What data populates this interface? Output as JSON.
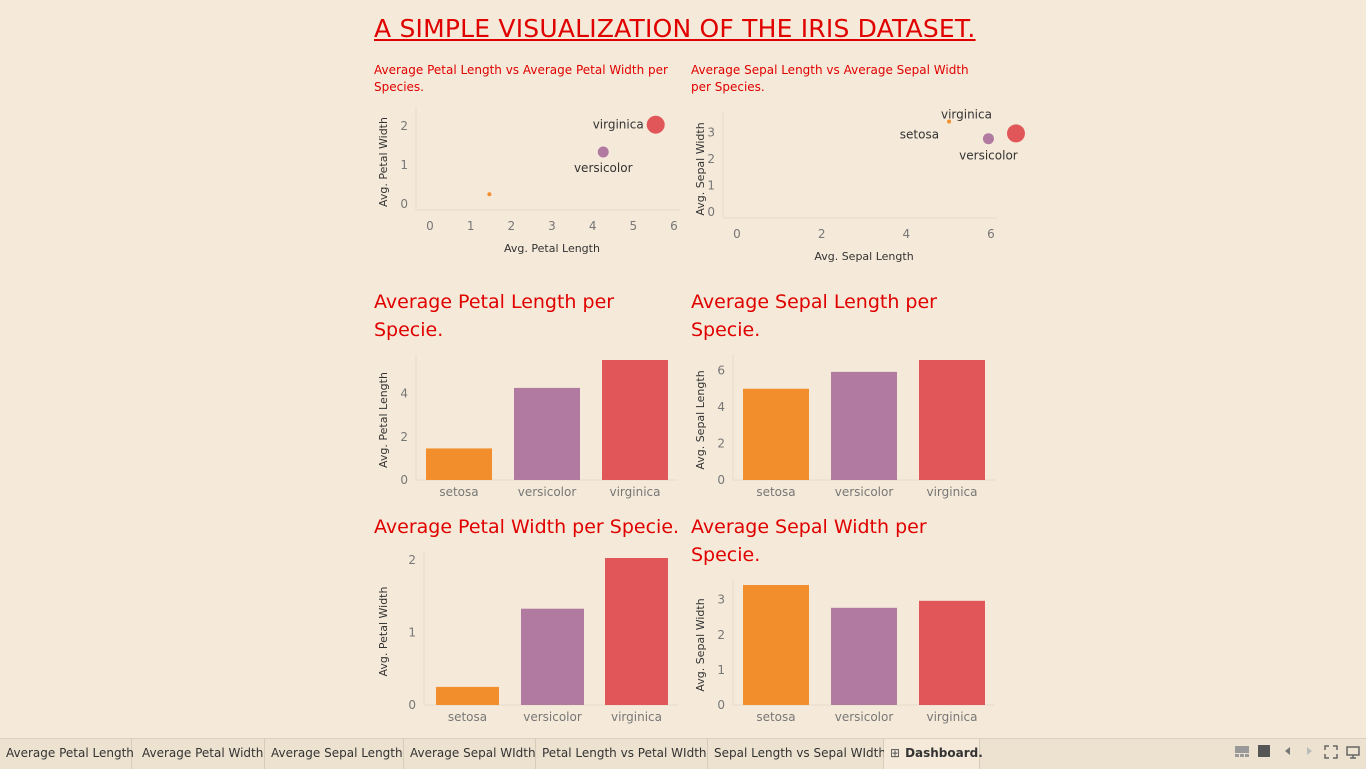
{
  "page": {
    "title": "A SIMPLE  VISUALIZATION OF THE IRIS DATASET."
  },
  "colors": {
    "setosa": "#f28e2b",
    "versicolor": "#b07aa1",
    "virginica": "#e15759",
    "title": "#e00000"
  },
  "chart_data": [
    {
      "id": "petal-scatter",
      "type": "scatter",
      "title": "Average Petal Length vs Average Petal Width per Species.",
      "xlabel": "Avg. Petal Length",
      "ylabel": "Avg. Petal Width",
      "xlim": [
        0,
        6
      ],
      "ylim": [
        0,
        2
      ],
      "xticks": [
        0,
        1,
        2,
        3,
        4,
        5,
        6
      ],
      "yticks": [
        0,
        1,
        2
      ],
      "points": [
        {
          "label": "",
          "species": "setosa",
          "x": 1.46,
          "y": 0.25,
          "size": 2
        },
        {
          "label": "versicolor",
          "species": "versicolor",
          "x": 4.26,
          "y": 1.33,
          "size": 5.5
        },
        {
          "label": "virginica",
          "species": "virginica",
          "x": 5.55,
          "y": 2.03,
          "size": 9
        }
      ]
    },
    {
      "id": "sepal-scatter",
      "type": "scatter",
      "title": "Average Sepal Length vs Average Sepal Width per Species.",
      "xlabel": "Avg. Sepal Length",
      "ylabel": "Avg. Sepal Width",
      "xlim": [
        0,
        6
      ],
      "ylim": [
        0,
        3
      ],
      "xticks": [
        0,
        2,
        4,
        6
      ],
      "yticks": [
        0,
        1,
        2,
        3
      ],
      "points": [
        {
          "label": "setosa",
          "species": "setosa",
          "x": 5.01,
          "y": 3.42,
          "size": 2
        },
        {
          "label": "versicolor",
          "species": "versicolor",
          "x": 5.94,
          "y": 2.77,
          "size": 5.5
        },
        {
          "label": "virginica",
          "species": "virginica",
          "x": 6.59,
          "y": 2.97,
          "size": 9
        }
      ]
    },
    {
      "id": "petal-length-bar",
      "type": "bar",
      "title": "Average Petal Length per Specie.",
      "ylabel": "Avg. Petal Length",
      "categories": [
        "setosa",
        "versicolor",
        "virginica"
      ],
      "values": [
        1.46,
        4.26,
        5.55
      ],
      "ylim": [
        0,
        5.55
      ],
      "yticks": [
        0,
        2,
        4
      ]
    },
    {
      "id": "sepal-length-bar",
      "type": "bar",
      "title": "Average Sepal Length per Specie.",
      "ylabel": "Avg. Sepal Length",
      "categories": [
        "setosa",
        "versicolor",
        "virginica"
      ],
      "values": [
        5.01,
        5.94,
        6.59
      ],
      "ylim": [
        0,
        6.59
      ],
      "yticks": [
        0,
        2,
        4,
        6
      ]
    },
    {
      "id": "petal-width-bar",
      "type": "bar",
      "title": "Average Petal Width per Specie.",
      "ylabel": "Avg. Petal Width",
      "categories": [
        "setosa",
        "versicolor",
        "virginica"
      ],
      "values": [
        0.25,
        1.33,
        2.03
      ],
      "ylim": [
        0,
        2.03
      ],
      "yticks": [
        0,
        1,
        2
      ]
    },
    {
      "id": "sepal-width-bar",
      "type": "bar",
      "title": "Average Sepal Width per Specie.",
      "ylabel": "Avg. Sepal Width",
      "categories": [
        "setosa",
        "versicolor",
        "virginica"
      ],
      "values": [
        3.42,
        2.77,
        2.97
      ],
      "ylim": [
        0,
        3.42
      ],
      "yticks": [
        0,
        1,
        2,
        3
      ]
    }
  ],
  "tabs": [
    {
      "label": "Average Petal Length"
    },
    {
      "label": "Average Petal Width"
    },
    {
      "label": "Average Sepal Length"
    },
    {
      "label": "Average Sepal WIdth"
    },
    {
      "label": "Petal Length vs Petal WIdth"
    },
    {
      "label": "Sepal Length vs Sepal WIdth"
    },
    {
      "label": "Dashboard."
    }
  ],
  "toolbar": {
    "icons": [
      "show-filmstrip-icon",
      "show-sheets-icon",
      "previous-sheet-icon",
      "next-sheet-icon",
      "presentation-mode-icon",
      "fullscreen-icon"
    ]
  }
}
